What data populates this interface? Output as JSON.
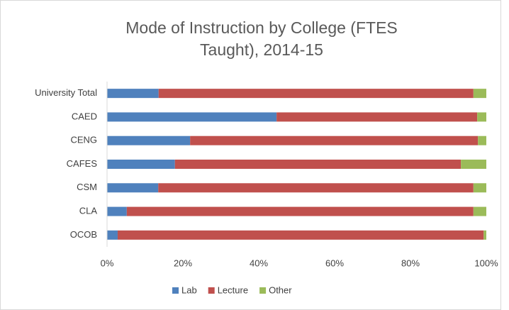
{
  "chart_data": {
    "type": "stacked_bar_horizontal",
    "title": "Mode of Instruction by College (FTES Taught), 2014-15",
    "categories": [
      "University Total",
      "CAED",
      "CENG",
      "CAFES",
      "CSM",
      "CLA",
      "OCOB"
    ],
    "series": [
      {
        "name": "Lab",
        "color": "#4f81bd",
        "values": [
          13.6,
          44.7,
          21.9,
          17.9,
          13.5,
          5.2,
          2.8
        ]
      },
      {
        "name": "Lecture",
        "color": "#c0504d",
        "values": [
          83,
          52.9,
          75.9,
          75.4,
          83.1,
          91.4,
          96.5
        ]
      },
      {
        "name": "Other",
        "color": "#9bbb59",
        "values": [
          3.4,
          2.4,
          2.2,
          6.7,
          3.4,
          3.4,
          0.7
        ]
      }
    ],
    "xlim": [
      0,
      100
    ],
    "xticks": [
      {
        "value": 0,
        "label": "0%"
      },
      {
        "value": 20,
        "label": "20%"
      },
      {
        "value": 40,
        "label": "40%"
      },
      {
        "value": 60,
        "label": "60%"
      },
      {
        "value": 80,
        "label": "80%"
      },
      {
        "value": 100,
        "label": "100%"
      }
    ],
    "legend": "bottom"
  }
}
